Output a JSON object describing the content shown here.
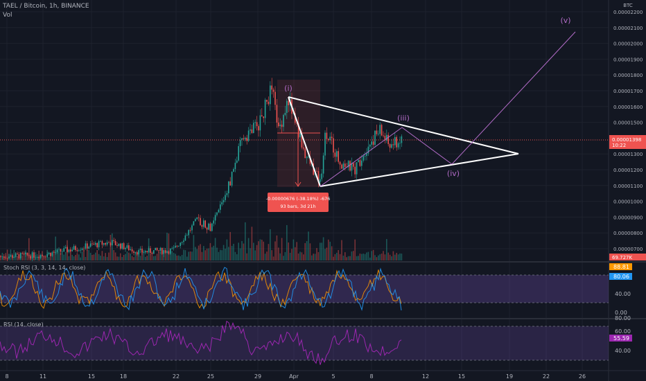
{
  "header": {
    "symbol": "TAEL / Bitcoin, 1h, BINANCE",
    "vol_label": "Vol",
    "currency": "BTC"
  },
  "price_axis": {
    "labels": [
      "0.00002200",
      "0.00002100",
      "0.00002000",
      "0.00001900",
      "0.00001800",
      "0.00001700",
      "0.00001600",
      "0.00001500",
      "0.00001300",
      "0.00001200",
      "0.00001100",
      "0.00001000",
      "0.00000900",
      "0.00000800",
      "0.00000700"
    ],
    "current_price": "0.00001398",
    "countdown": "10:22",
    "volume_badge": "69.727K"
  },
  "time_axis": [
    "8",
    "11",
    "15",
    "18",
    "22",
    "25",
    "29",
    "Apr",
    "5",
    "8",
    "12",
    "15",
    "19",
    "22",
    "26"
  ],
  "measure": {
    "line1": "-0.00000676 (-38.18%) -676",
    "line2": "93 bars, 3d 21h"
  },
  "wave_labels": [
    "(i)",
    "(iii)",
    "(iv)",
    "(v)"
  ],
  "stoch": {
    "title": "Stoch RSI (3, 3, 14, 14, close)",
    "k_value": "88.81",
    "d_value": "80.06",
    "axis": [
      "40.00",
      "0.00"
    ]
  },
  "rsi": {
    "title": "RSI (14, close)",
    "value": "55.59",
    "axis": [
      "80.00",
      "60.00",
      "40.00"
    ]
  },
  "colors": {
    "background": "#131722",
    "up": "#26a69a",
    "down": "#ef5350",
    "stoch_k": "#2196f3",
    "stoch_d": "#ff9800",
    "rsi": "#9c27b0",
    "band": "#7e57c2",
    "wave": "#b36cc8"
  },
  "chart_data": {
    "type": "candlestick",
    "pair": "TAEL/BTC",
    "interval": "1h",
    "approx_close_path": [
      {
        "date": "Mar 8",
        "close": 6.5e-06
      },
      {
        "date": "Mar 18",
        "close": 7.4e-06
      },
      {
        "date": "Mar 22",
        "close": 6.8e-06
      },
      {
        "date": "Mar 25",
        "close": 8.8e-06
      },
      {
        "date": "Mar 27",
        "close": 1.4e-05
      },
      {
        "date": "Mar 29",
        "close": 1.75e-05
      },
      {
        "date": "Apr 1",
        "close": 1.65e-05
      },
      {
        "date": "Apr 4",
        "close": 1.1e-05
      },
      {
        "date": "Apr 6",
        "close": 1.25e-05
      },
      {
        "date": "Apr 8",
        "close": 1.45e-05
      },
      {
        "date": "Apr 10",
        "close": 1.398e-05
      }
    ],
    "current_price": 1.398e-05,
    "measurement": {
      "change": -6.76e-06,
      "pct": -38.18,
      "bars": 93,
      "span": "3d 21h"
    },
    "triangle": {
      "upper": [
        [
          "Apr 1",
          1.66e-05
        ],
        [
          "Apr 20",
          1.31e-05
        ]
      ],
      "lower": [
        [
          "Apr 4",
          1.1e-05
        ],
        [
          "Apr 20",
          1.31e-05
        ]
      ]
    },
    "wave_projection": [
      [
        "Apr 10",
        1.48e-05
      ],
      [
        "Apr 14",
        1.24e-05
      ],
      [
        "Apr 26",
        2.14e-05
      ]
    ],
    "stoch_rsi": {
      "k": 88.81,
      "d": 80.06,
      "bands": [
        20,
        80
      ]
    },
    "rsi": {
      "value": 55.59,
      "bands": [
        30,
        70
      ]
    }
  }
}
